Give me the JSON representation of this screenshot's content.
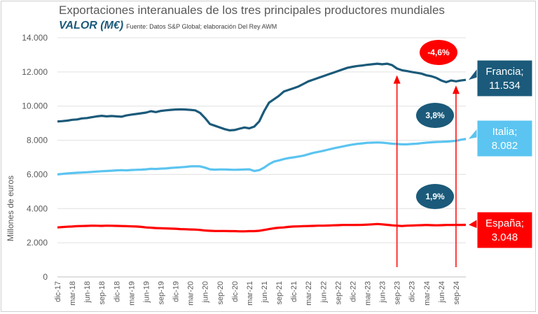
{
  "header": {
    "title": "Exportaciones interanuales de los tres principales productores mundiales",
    "subtitle": "VALOR (M€)",
    "source": "Fuente: Datos S&P Global; elaboración Del Rey AWM"
  },
  "chart_data": {
    "type": "line",
    "title": "Exportaciones interanuales de los tres principales productores mundiales",
    "subtitle": "VALOR (M€)",
    "xlabel": "",
    "ylabel": "Millones de euros",
    "ylim": [
      0,
      14000
    ],
    "yticks": [
      0,
      2000,
      4000,
      6000,
      8000,
      10000,
      12000,
      14000
    ],
    "ytick_labels": [
      "0",
      "2.000",
      "4.000",
      "6.000",
      "8.000",
      "10.000",
      "12.000",
      "14.000"
    ],
    "grid": "horizontal",
    "x_tick_labels": [
      "dic-17",
      "mar-18",
      "jun-18",
      "sep-18",
      "dic-18",
      "mar-19",
      "jun-19",
      "sep-19",
      "dic-19",
      "mar-20",
      "jun-20",
      "sep-20",
      "dic-20",
      "mar-21",
      "jun-21",
      "sep-21",
      "dic-21",
      "mar-22",
      "jun-22",
      "sep-22",
      "dic-22",
      "mar-23",
      "jun-23",
      "sep-23",
      "dic-23",
      "mar-24",
      "jun-24",
      "sep-24"
    ],
    "series": [
      {
        "name": "Francia",
        "color": "#1b5a7a",
        "end_label": [
          "Francia;",
          "11.534"
        ],
        "values": [
          9100,
          9120,
          9150,
          9200,
          9220,
          9280,
          9300,
          9350,
          9400,
          9430,
          9400,
          9420,
          9400,
          9380,
          9450,
          9500,
          9540,
          9580,
          9620,
          9700,
          9650,
          9720,
          9750,
          9780,
          9800,
          9810,
          9800,
          9780,
          9750,
          9600,
          9300,
          8950,
          8850,
          8750,
          8650,
          8580,
          8600,
          8680,
          8750,
          8700,
          8800,
          9100,
          9700,
          10200,
          10400,
          10600,
          10850,
          10950,
          11050,
          11150,
          11300,
          11450,
          11550,
          11650,
          11750,
          11850,
          11950,
          12050,
          12150,
          12250,
          12300,
          12350,
          12380,
          12420,
          12450,
          12480,
          12450,
          12480,
          12400,
          12200,
          12100,
          12050,
          12000,
          11950,
          11900,
          11800,
          11750,
          11650,
          11500,
          11400,
          11500,
          11450,
          11500,
          11534
        ]
      },
      {
        "name": "Italia",
        "color": "#5bc4f0",
        "end_label": [
          "Italia;",
          "8.082"
        ],
        "values": [
          6000,
          6030,
          6060,
          6080,
          6100,
          6110,
          6130,
          6150,
          6170,
          6190,
          6200,
          6220,
          6240,
          6250,
          6240,
          6260,
          6270,
          6280,
          6300,
          6330,
          6320,
          6340,
          6350,
          6380,
          6400,
          6420,
          6440,
          6470,
          6480,
          6470,
          6400,
          6300,
          6280,
          6290,
          6290,
          6280,
          6270,
          6280,
          6290,
          6300,
          6200,
          6250,
          6400,
          6600,
          6750,
          6820,
          6900,
          6960,
          7000,
          7050,
          7100,
          7180,
          7260,
          7320,
          7380,
          7450,
          7520,
          7580,
          7640,
          7700,
          7750,
          7790,
          7820,
          7850,
          7860,
          7870,
          7860,
          7830,
          7800,
          7780,
          7760,
          7760,
          7780,
          7800,
          7830,
          7860,
          7880,
          7900,
          7910,
          7920,
          7940,
          7970,
          8030,
          8082
        ]
      },
      {
        "name": "España",
        "color": "#ff0000",
        "end_label": [
          "España;",
          "3.048"
        ],
        "values": [
          2900,
          2920,
          2940,
          2950,
          2970,
          2980,
          2990,
          3000,
          2995,
          2990,
          3000,
          2995,
          2990,
          2980,
          2970,
          2960,
          2950,
          2930,
          2900,
          2880,
          2860,
          2850,
          2840,
          2830,
          2820,
          2800,
          2790,
          2780,
          2770,
          2750,
          2720,
          2700,
          2690,
          2690,
          2690,
          2680,
          2680,
          2670,
          2670,
          2680,
          2680,
          2700,
          2750,
          2800,
          2850,
          2880,
          2900,
          2930,
          2950,
          2960,
          2970,
          2980,
          2990,
          3000,
          3000,
          3010,
          3020,
          3030,
          3040,
          3040,
          3040,
          3045,
          3050,
          3060,
          3080,
          3100,
          3080,
          3050,
          3020,
          3000,
          2980,
          3000,
          3010,
          3020,
          3030,
          3040,
          3030,
          3020,
          3030,
          3040,
          3040,
          3045,
          3045,
          3048
        ]
      }
    ],
    "annotations": [
      {
        "text": "-4,6%",
        "color": "#ff0000",
        "text_color": "#ffffff",
        "series": "Francia"
      },
      {
        "text": "3,8%",
        "color": "#1b5a7a",
        "text_color": "#ffffff",
        "series": "Italia"
      },
      {
        "text": "1,9%",
        "color": "#1b5a7a",
        "text_color": "#ffffff",
        "series": "España"
      }
    ],
    "arrows": [
      {
        "from_x_index": 69,
        "to_x_index": 69,
        "to_value": 12050,
        "color": "#ff0000"
      },
      {
        "from_x_index": 81,
        "to_x_index": 81,
        "to_value": 11450,
        "color": "#ff0000"
      }
    ]
  }
}
